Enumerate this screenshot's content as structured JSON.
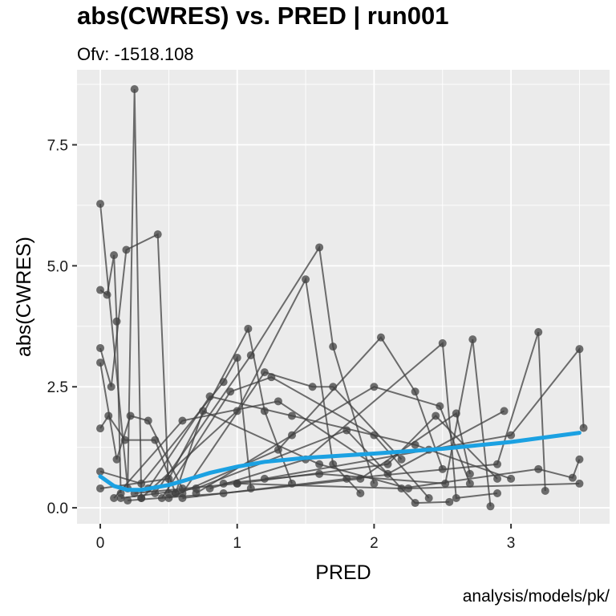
{
  "chart_data": {
    "type": "scatter",
    "title": "abs(CWRES) vs. PRED | run001",
    "subtitle": "Ofv: -1518.108",
    "caption": "analysis/models/pk/",
    "xlabel": "PRED",
    "ylabel": "abs(CWRES)",
    "xlim": [
      -0.17,
      3.72
    ],
    "ylim": [
      -0.33,
      9.05
    ],
    "x_ticks": [
      0,
      1,
      2,
      3
    ],
    "x_tick_labels": [
      "0",
      "1",
      "2",
      "3"
    ],
    "y_ticks": [
      0,
      2.5,
      5,
      7.5
    ],
    "y_tick_labels": [
      "0.0",
      "2.5",
      "5.0",
      "7.5"
    ],
    "grid": true,
    "colors": {
      "panel": "#ebebeb",
      "grid": "#ffffff",
      "points": "#404040",
      "smooth": "#1ba1e2"
    },
    "series": [
      {
        "kind": "points",
        "connected_by_subject": true,
        "note_visible_only": "",
        "lines": [
          [
            [
              0.0,
              6.28
            ],
            [
              0.2,
              0.4
            ],
            [
              0.25,
              8.65
            ],
            [
              0.3,
              0.2
            ]
          ],
          [
            [
              0.0,
              4.5
            ],
            [
              0.05,
              4.4
            ],
            [
              0.1,
              5.22
            ],
            [
              0.12,
              3.85
            ],
            [
              0.15,
              0.3
            ]
          ],
          [
            [
              0.0,
              3.3
            ],
            [
              0.08,
              2.5
            ],
            [
              0.19,
              5.33
            ],
            [
              0.42,
              5.65
            ],
            [
              0.5,
              0.3
            ]
          ],
          [
            [
              0.0,
              3.0
            ],
            [
              0.12,
              1.0
            ],
            [
              0.22,
              1.9
            ],
            [
              0.35,
              1.8
            ],
            [
              0.6,
              0.4
            ]
          ],
          [
            [
              0.0,
              1.64
            ],
            [
              0.06,
              1.9
            ],
            [
              0.18,
              1.4
            ],
            [
              0.4,
              1.4
            ],
            [
              0.55,
              0.3
            ]
          ],
          [
            [
              0.0,
              0.75
            ],
            [
              0.3,
              0.5
            ],
            [
              0.9,
              2.6
            ],
            [
              1.0,
              3.1
            ],
            [
              1.1,
              0.4
            ]
          ],
          [
            [
              0.0,
              0.4
            ],
            [
              0.5,
              0.6
            ],
            [
              1.08,
              3.7
            ],
            [
              1.2,
              2.0
            ],
            [
              1.4,
              0.5
            ]
          ],
          [
            [
              0.3,
              0.2
            ],
            [
              1.0,
              2.0
            ],
            [
              1.5,
              4.72
            ],
            [
              1.7,
              0.9
            ],
            [
              1.9,
              0.3
            ]
          ],
          [
            [
              0.4,
              0.3
            ],
            [
              1.1,
              3.15
            ],
            [
              1.6,
              5.38
            ],
            [
              1.7,
              3.33
            ],
            [
              2.0,
              0.5
            ]
          ],
          [
            [
              0.6,
              0.3
            ],
            [
              1.2,
              2.8
            ],
            [
              1.55,
              2.5
            ],
            [
              1.7,
              2.5
            ],
            [
              2.2,
              1.0
            ]
          ],
          [
            [
              0.5,
              0.2
            ],
            [
              1.3,
              1.2
            ],
            [
              2.05,
              3.52
            ],
            [
              2.3,
              2.4
            ],
            [
              2.5,
              0.8
            ]
          ],
          [
            [
              0.7,
              0.3
            ],
            [
              1.4,
              1.5
            ],
            [
              2.0,
              2.5
            ],
            [
              2.48,
              2.1
            ],
            [
              2.7,
              0.5
            ]
          ],
          [
            [
              0.8,
              0.4
            ],
            [
              1.5,
              1.0
            ],
            [
              2.5,
              3.4
            ],
            [
              2.6,
              0.2
            ],
            [
              2.9,
              0.3
            ]
          ],
          [
            [
              0.9,
              0.5
            ],
            [
              1.6,
              0.7
            ],
            [
              2.52,
              0.5
            ],
            [
              2.72,
              3.48
            ],
            [
              2.85,
              0.03
            ]
          ],
          [
            [
              0.6,
              0.2
            ],
            [
              1.8,
              0.6
            ],
            [
              2.9,
              0.9
            ],
            [
              3.2,
              3.63
            ],
            [
              3.25,
              0.35
            ]
          ],
          [
            [
              1.0,
              0.5
            ],
            [
              2.2,
              0.4
            ],
            [
              3.2,
              0.8
            ],
            [
              3.45,
              0.62
            ],
            [
              3.5,
              1.0
            ]
          ],
          [
            [
              1.2,
              0.6
            ],
            [
              2.4,
              1.2
            ],
            [
              3.0,
              1.5
            ],
            [
              3.5,
              3.28
            ],
            [
              3.53,
              1.65
            ]
          ],
          [
            [
              0.2,
              0.15
            ],
            [
              0.9,
              0.3
            ],
            [
              1.9,
              0.6
            ],
            [
              2.6,
              1.95
            ],
            [
              2.7,
              0.7
            ]
          ],
          [
            [
              0.25,
              0.3
            ],
            [
              1.0,
              0.5
            ],
            [
              2.1,
              0.9
            ],
            [
              2.45,
              1.9
            ],
            [
              2.9,
              0.6
            ]
          ],
          [
            [
              0.15,
              0.2
            ],
            [
              0.7,
              0.4
            ],
            [
              1.8,
              1.6
            ],
            [
              2.3,
              0.1
            ],
            [
              2.55,
              0.12
            ]
          ],
          [
            [
              0.1,
              0.2
            ],
            [
              0.6,
              1.8
            ],
            [
              1.3,
              2.2
            ],
            [
              2.1,
              0.7
            ],
            [
              2.95,
              2.0
            ]
          ],
          [
            [
              0.35,
              0.4
            ],
            [
              0.8,
              2.3
            ],
            [
              1.4,
              1.9
            ],
            [
              2.3,
              1.3
            ],
            [
              3.0,
              0.6
            ]
          ],
          [
            [
              0.45,
              0.2
            ],
            [
              0.95,
              2.4
            ],
            [
              1.25,
              2.7
            ],
            [
              2.0,
              1.5
            ],
            [
              2.4,
              0.2
            ]
          ],
          [
            [
              0.55,
              0.3
            ],
            [
              0.75,
              2.0
            ],
            [
              1.6,
              0.9
            ],
            [
              2.25,
              0.4
            ],
            [
              3.5,
              0.5
            ]
          ]
        ]
      },
      {
        "kind": "smooth",
        "x": [
          0.0,
          0.1,
          0.2,
          0.3,
          0.4,
          0.5,
          0.6,
          0.8,
          1.0,
          1.2,
          1.5,
          2.0,
          2.5,
          3.0,
          3.5
        ],
        "y": [
          0.65,
          0.45,
          0.37,
          0.37,
          0.42,
          0.47,
          0.55,
          0.72,
          0.85,
          0.95,
          1.03,
          1.12,
          1.22,
          1.36,
          1.55
        ]
      }
    ]
  }
}
